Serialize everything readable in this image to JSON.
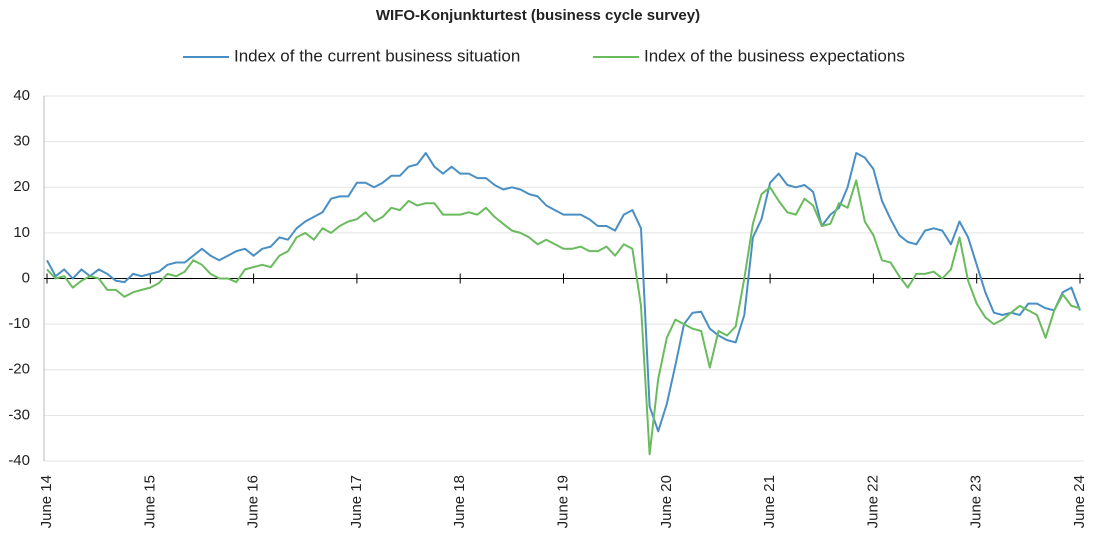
{
  "chart_data": {
    "type": "line",
    "title": "WIFO-Konjunkturtest (business cycle survey)",
    "categories": [
      "June 14",
      null,
      null,
      null,
      null,
      null,
      null,
      null,
      null,
      null,
      null,
      null,
      "June 15",
      null,
      null,
      null,
      null,
      null,
      null,
      null,
      null,
      null,
      null,
      null,
      "June 16",
      null,
      null,
      null,
      null,
      null,
      null,
      null,
      null,
      null,
      null,
      null,
      "June 17",
      null,
      null,
      null,
      null,
      null,
      null,
      null,
      null,
      null,
      null,
      null,
      "June 18",
      null,
      null,
      null,
      null,
      null,
      null,
      null,
      null,
      null,
      null,
      null,
      "June 19",
      null,
      null,
      null,
      null,
      null,
      null,
      null,
      null,
      null,
      null,
      null,
      "June 20",
      null,
      null,
      null,
      null,
      null,
      null,
      null,
      null,
      null,
      null,
      null,
      "June 21",
      null,
      null,
      null,
      null,
      null,
      null,
      null,
      null,
      null,
      null,
      null,
      "June 22",
      null,
      null,
      null,
      null,
      null,
      null,
      null,
      null,
      null,
      null,
      null,
      "June 23",
      null,
      null,
      null,
      null,
      null,
      null,
      null,
      null,
      null,
      null,
      null,
      "June 24"
    ],
    "series": [
      {
        "name": "Index of the current business situation",
        "color": "#4a8fc4",
        "values": [
          4,
          0.5,
          2,
          0,
          2,
          0.5,
          2,
          1,
          -0.5,
          -0.8,
          1,
          0.5,
          1,
          1.5,
          3,
          3.5,
          3.5,
          5,
          6.5,
          5,
          4,
          5,
          6,
          6.5,
          5,
          6.5,
          7,
          9,
          8.5,
          11,
          12.5,
          13.5,
          14.5,
          17.5,
          18,
          18,
          21,
          21,
          20,
          21,
          22.5,
          22.5,
          24.5,
          25,
          27.5,
          24.5,
          23,
          24.5,
          23,
          23,
          22,
          22,
          20.5,
          19.5,
          20,
          19.5,
          18.5,
          18,
          16,
          15,
          14,
          14,
          14,
          13,
          11.5,
          11.5,
          10.5,
          14,
          15,
          11,
          -28,
          -33.5,
          -27.5,
          -19,
          -10,
          -7.5,
          -7.3,
          -11,
          -12.5,
          -13.5,
          -14,
          -8,
          9,
          13,
          21,
          23,
          20.5,
          20,
          20.5,
          19,
          11.5,
          14,
          15.5,
          20,
          27.5,
          26.5,
          24,
          17,
          13,
          9.5,
          8,
          7.5,
          10.5,
          11,
          10.5,
          7.5,
          12.5,
          9,
          3,
          -3,
          -7.5,
          -8,
          -7.5,
          -8,
          -5.5,
          -5.5,
          -6.5,
          -7,
          -3,
          -2,
          -7
        ]
      },
      {
        "name": "Index of the business expectations",
        "color": "#6abb5e",
        "values": [
          2,
          0,
          0.5,
          -2,
          -0.5,
          0.5,
          0,
          -2.5,
          -2.5,
          -4,
          -3,
          -2.5,
          -2,
          -1,
          1,
          0.5,
          1.5,
          4,
          3,
          1,
          0,
          0,
          -0.8,
          2,
          2.5,
          3,
          2.5,
          5,
          6,
          9,
          10,
          8.5,
          11,
          10,
          11.5,
          12.5,
          13,
          14.5,
          12.5,
          13.5,
          15.5,
          15,
          17,
          16,
          16.5,
          16.5,
          14,
          14,
          14,
          14.5,
          14,
          15.5,
          13.5,
          12,
          10.5,
          10,
          9,
          7.5,
          8.5,
          7.5,
          6.5,
          6.5,
          7,
          6,
          6,
          7,
          5,
          7.5,
          6.5,
          -6,
          -38.5,
          -22,
          -13,
          -9,
          -10,
          -11,
          -11.5,
          -19.5,
          -11.5,
          -12.5,
          -10.5,
          0,
          12,
          18.5,
          20,
          17,
          14.5,
          14,
          17.5,
          16,
          11.5,
          12,
          16.5,
          15.5,
          21.5,
          12.5,
          9.5,
          4,
          3.5,
          0.5,
          -2,
          1,
          1,
          1.5,
          0,
          2,
          9,
          -0.5,
          -5.5,
          -8.5,
          -10,
          -9,
          -7.5,
          -6,
          -7,
          -8,
          -13,
          -7,
          -3.5,
          -6,
          -6.5
        ]
      }
    ],
    "ylim": [
      -40,
      40
    ],
    "yticks": [
      -40,
      -30,
      -20,
      -10,
      0,
      10,
      20,
      30,
      40
    ],
    "grid": true,
    "legend": "top"
  }
}
